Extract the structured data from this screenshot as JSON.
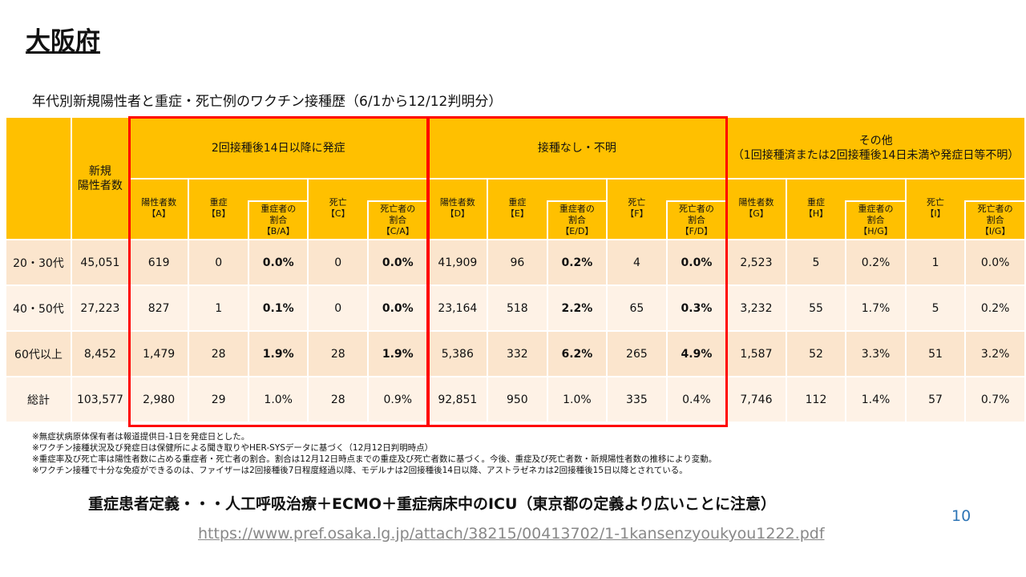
{
  "title": "大阪府",
  "subtitle": "年代別新規陽性者と重症・死亡例のワクチン接種歴（6/1から12/12判明分）",
  "header": {
    "new_cases": "新規\n陽性者数",
    "groups": [
      "2回接種後14日以降に発症",
      "接種なし・不明",
      "その他\n（1回接種済または2回接種後14日未満や発症日等不明）"
    ],
    "sub": [
      [
        "陽性者数\n【A】",
        "重症\n【B】",
        "重症者の\n割合\n【B/A】",
        "死亡\n【C】",
        "死亡者の\n割合\n【C/A】"
      ],
      [
        "陽性者数\n【D】",
        "重症\n【E】",
        "重症者の\n割合\n【E/D】",
        "死亡\n【F】",
        "死亡者の\n割合\n【F/D】"
      ],
      [
        "陽性者数\n【G】",
        "重症\n【H】",
        "重症者の\n割合\n【H/G】",
        "死亡\n【I】",
        "死亡者の\n割合\n【I/G】"
      ]
    ]
  },
  "rows": [
    {
      "age": "20・30代",
      "cells": [
        "45,051",
        "619",
        "0",
        "0.0%",
        "0",
        "0.0%",
        "41,909",
        "96",
        "0.2%",
        "4",
        "0.0%",
        "2,523",
        "5",
        "0.2%",
        "1",
        "0.0%"
      ]
    },
    {
      "age": "40・50代",
      "cells": [
        "27,223",
        "827",
        "1",
        "0.1%",
        "0",
        "0.0%",
        "23,164",
        "518",
        "2.2%",
        "65",
        "0.3%",
        "3,232",
        "55",
        "1.7%",
        "5",
        "0.2%"
      ]
    },
    {
      "age": "60代以上",
      "cells": [
        "8,452",
        "1,479",
        "28",
        "1.9%",
        "28",
        "1.9%",
        "5,386",
        "332",
        "6.2%",
        "265",
        "4.9%",
        "1,587",
        "52",
        "3.3%",
        "51",
        "3.2%"
      ]
    },
    {
      "age": "総計",
      "cells": [
        "103,577",
        "2,980",
        "29",
        "1.0%",
        "28",
        "0.9%",
        "92,851",
        "950",
        "1.0%",
        "335",
        "0.4%",
        "7,746",
        "112",
        "1.4%",
        "57",
        "0.7%"
      ]
    }
  ],
  "notes": [
    "※無症状病原体保有者は報道提供日-1日を発症日とした。",
    "※ワクチン接種状況及び発症日は保健所による聞き取りやHER-SYSデータに基づく（12月12日判明時点）",
    "※重症率及び死亡率は陽性者数に占める重症者・死亡者の割合。割合は12月12日時点までの重症及び死亡者数に基づく。今後、重症及び死亡者数・新規陽性者数の推移により変動。",
    "※ワクチン接種で十分な免疫ができるのは、ファイザーは2回接種後7日程度経過以降、モデルナは2回接種後14日以降、アストラゼネカは2回接種後15日以降とされている。"
  ],
  "definition": "重症患者定義・・・人工呼吸治療＋ECMO＋重症病床中のICU（東京都の定義より広いことに注意）",
  "page_number": "10",
  "url": "https://www.pref.osaka.lg.jp/attach/38215/00413702/1-1kansenzyoukyou1222.pdf"
}
